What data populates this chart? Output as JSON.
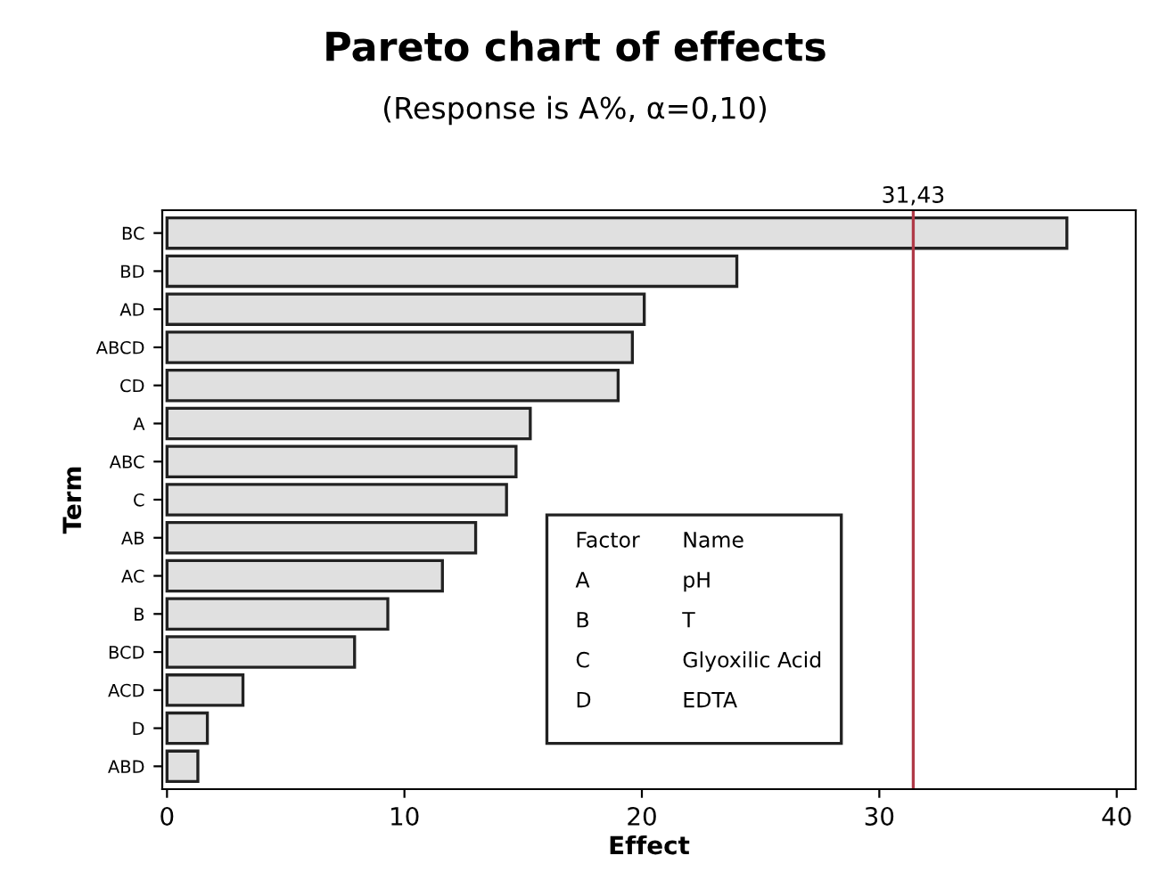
{
  "chart_data": {
    "type": "bar",
    "orientation": "horizontal",
    "title": "Pareto chart of effects",
    "subtitle": "(Response is A%, α=0,10)",
    "xlabel": "Effect",
    "ylabel": "Term",
    "categories": [
      "BC",
      "BD",
      "AD",
      "ABCD",
      "CD",
      "A",
      "ABC",
      "C",
      "AB",
      "AC",
      "B",
      "BCD",
      "ACD",
      "D",
      "ABD"
    ],
    "values": [
      37.9,
      24.0,
      20.1,
      19.6,
      19.0,
      15.3,
      14.7,
      14.3,
      13.0,
      11.6,
      9.3,
      7.9,
      3.2,
      1.7,
      1.3
    ],
    "color": "#e0e0e0",
    "xlim": [
      -0.2,
      40.8
    ],
    "xticks": [
      0,
      10,
      20,
      30,
      40
    ],
    "ref_lines": [
      {
        "axis": "x",
        "value": 31.43,
        "label": "31,43",
        "color": "#b03a48"
      }
    ],
    "annotations": [
      "Factor",
      "Name",
      "A",
      "pH",
      "B",
      "T",
      "C",
      "Glyoxilic Acid",
      "D",
      "EDTA"
    ],
    "grid": false,
    "legend": false
  }
}
